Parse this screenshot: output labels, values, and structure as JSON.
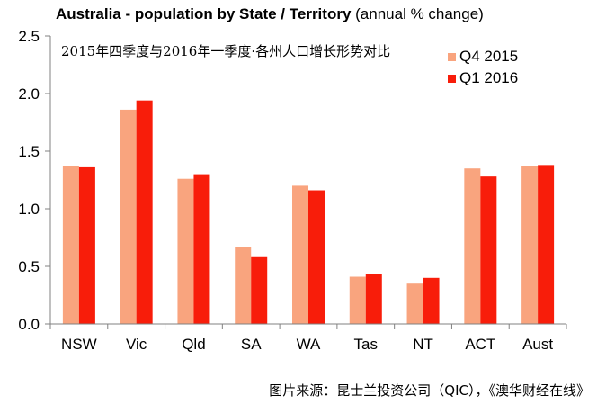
{
  "title_bold": "Australia - population by State / Territory",
  "title_rest": " (annual % change)",
  "subtitle": "2015年四季度与2016年一季度·各州人口增长形势对比",
  "source": "图片来源：昆士兰投资公司（QIC），《澳华财经在线》",
  "colors": {
    "series1": "#F9A47E",
    "series2": "#F81D0A",
    "axis": "#808080"
  },
  "chart_data": {
    "type": "bar",
    "categories": [
      "NSW",
      "Vic",
      "Qld",
      "SA",
      "WA",
      "Tas",
      "NT",
      "ACT",
      "Aust"
    ],
    "series": [
      {
        "name": "Q4 2015",
        "values": [
          1.37,
          1.86,
          1.26,
          0.67,
          1.2,
          0.41,
          0.35,
          1.35,
          1.37
        ]
      },
      {
        "name": "Q1 2016",
        "values": [
          1.36,
          1.94,
          1.3,
          0.58,
          1.16,
          0.43,
          0.4,
          1.28,
          1.38
        ]
      }
    ],
    "ylim": [
      0,
      2.5
    ],
    "yticks": [
      "0.0",
      "0.5",
      "1.0",
      "1.5",
      "2.0",
      "2.5"
    ],
    "xlabel": "",
    "ylabel": "",
    "legend": "top-right",
    "grid": false
  }
}
